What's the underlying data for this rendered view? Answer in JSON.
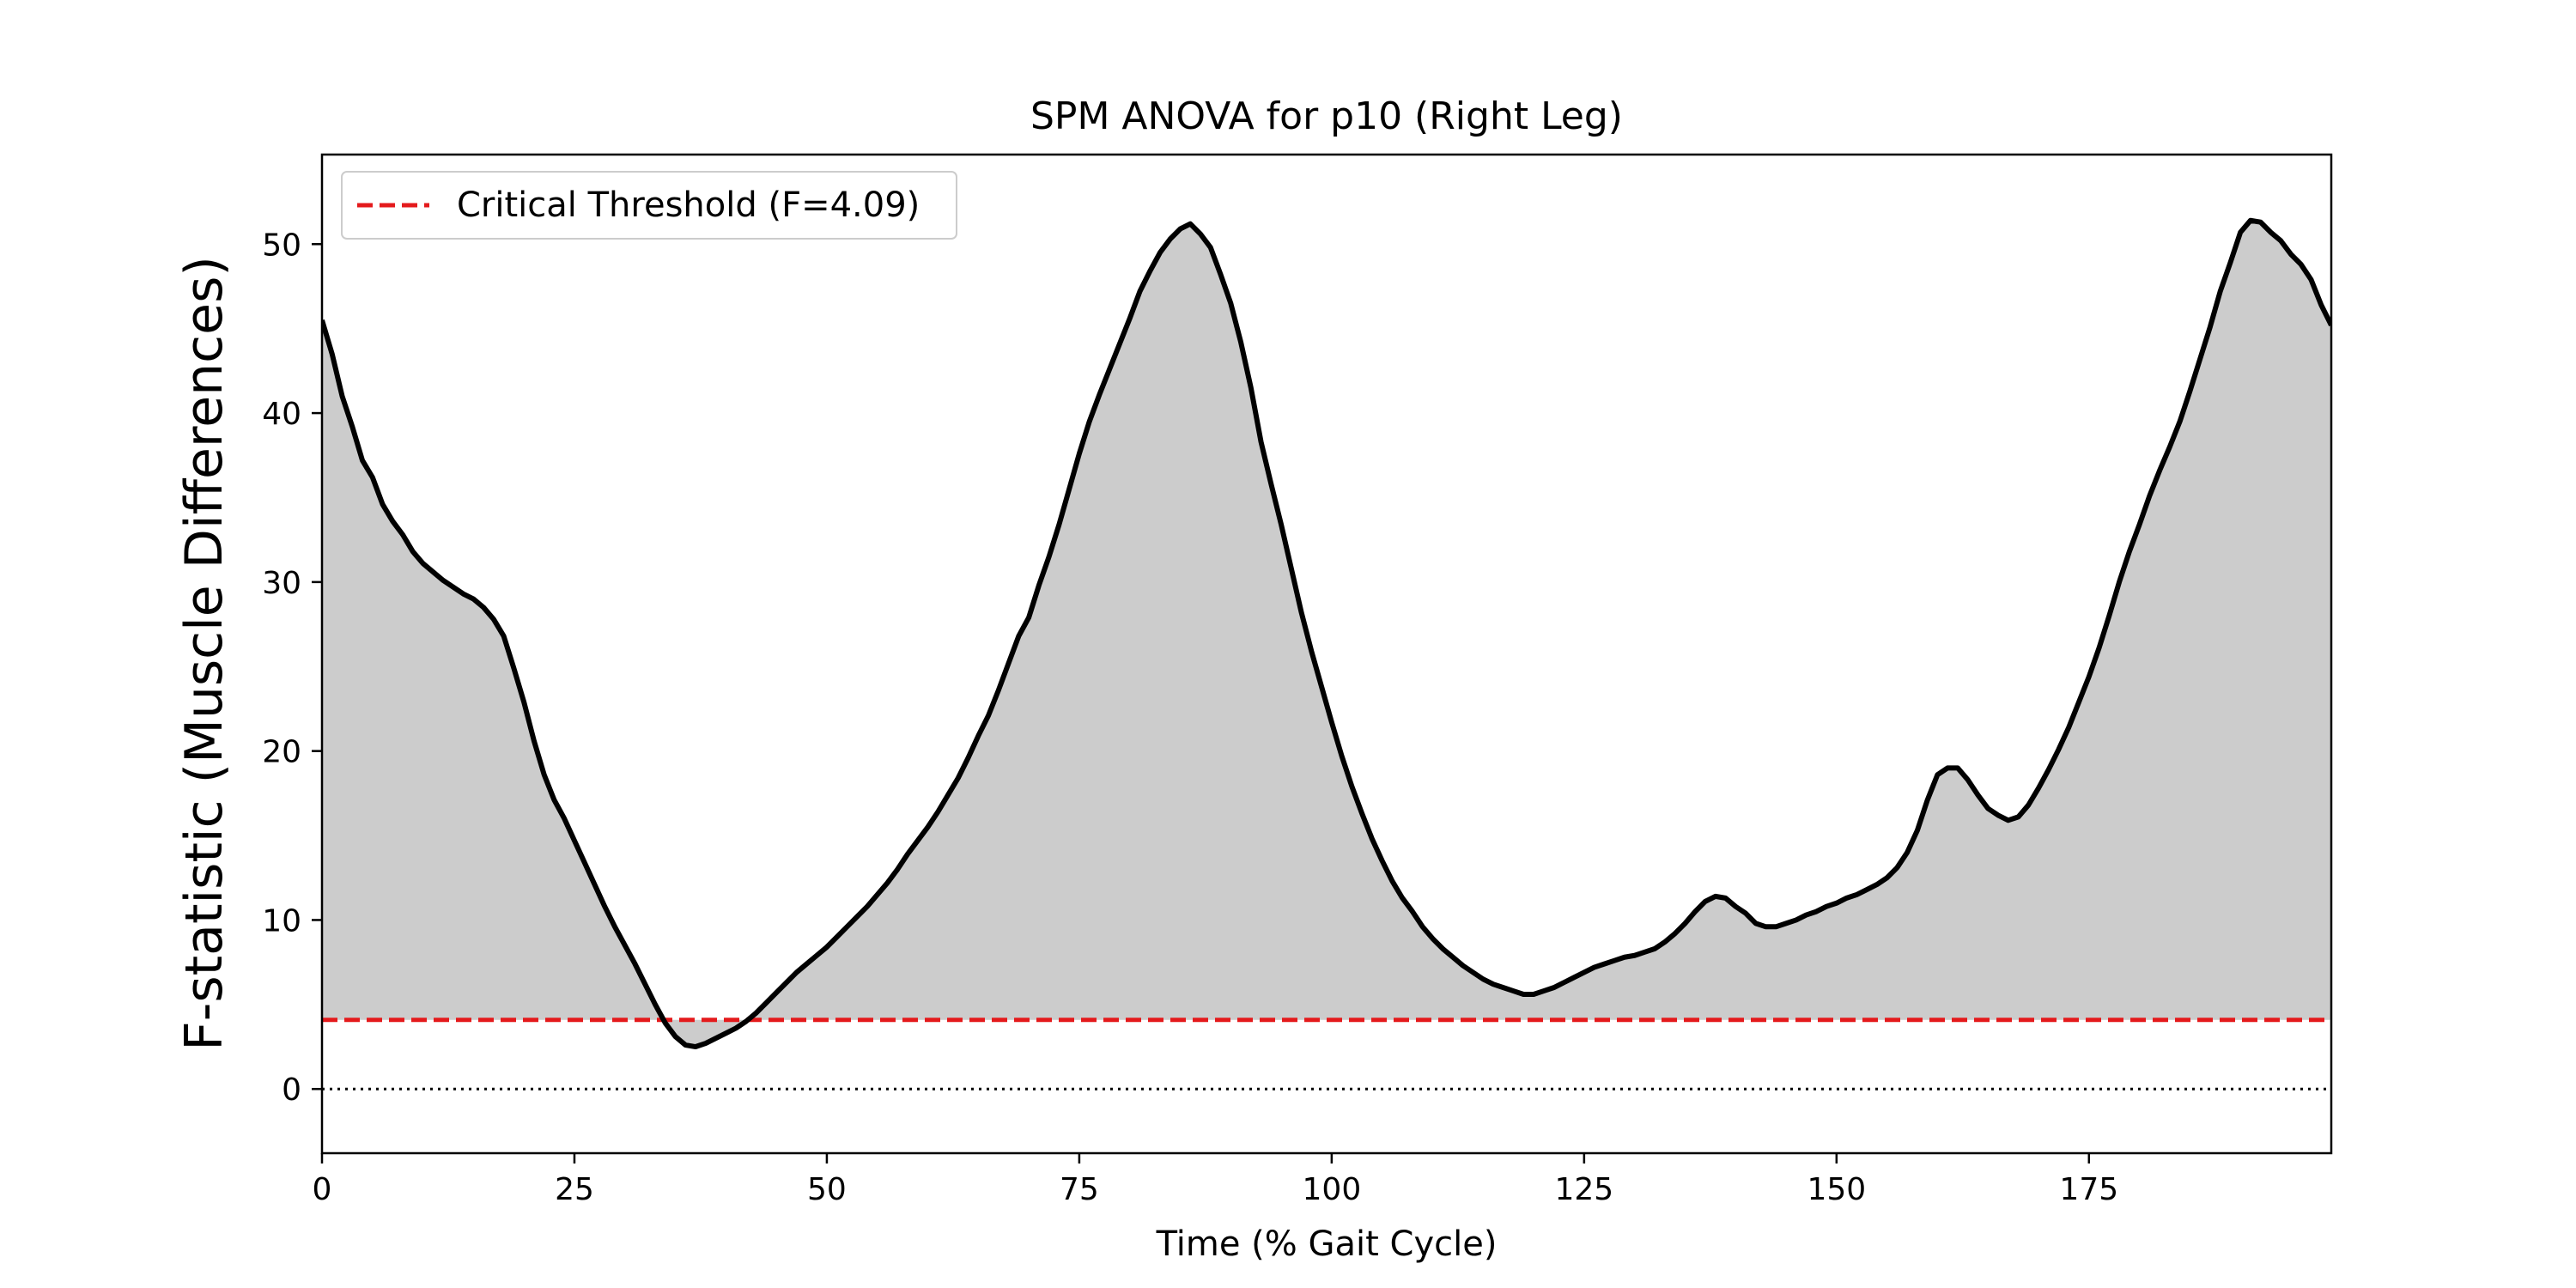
{
  "chart_data": {
    "type": "line",
    "title": "SPM ANOVA for p10 (Right Leg)",
    "xlabel": "Time (% Gait Cycle)",
    "ylabel": "F-statistic (Muscle Differences)",
    "xlim": [
      0,
      199
    ],
    "ylim": [
      -3.8,
      55.3
    ],
    "x_ticks": [
      0,
      25,
      50,
      75,
      100,
      125,
      150,
      175
    ],
    "y_ticks": [
      0,
      10,
      20,
      30,
      40,
      50
    ],
    "grid": false,
    "legend_position": "top-left",
    "threshold": {
      "name": "Critical Threshold (F=4.09)",
      "value": 4.09,
      "color": "#e41a1c",
      "style": "dashed"
    },
    "zero_line": {
      "value": 0,
      "style": "dotted"
    },
    "fill_color": "#cccccc",
    "line_color": "#000000",
    "series": [
      {
        "x": [
          0,
          1,
          2,
          3,
          4,
          5,
          6,
          7,
          8,
          9,
          10,
          11,
          12,
          13,
          14,
          15,
          16,
          17,
          18,
          19,
          20,
          21,
          22,
          23,
          24,
          25,
          26,
          27,
          28,
          29,
          30,
          31,
          32,
          33,
          34,
          35,
          36,
          37,
          38,
          39,
          40,
          41,
          42,
          43,
          44,
          45,
          46,
          47,
          48,
          49,
          50,
          51,
          52,
          53,
          54,
          55,
          56,
          57,
          58,
          59,
          60,
          61,
          62,
          63,
          64,
          65,
          66,
          67,
          68,
          69,
          70,
          71,
          72,
          73,
          74,
          75,
          76,
          77,
          78,
          79,
          80,
          81,
          82,
          83,
          84,
          85,
          86,
          87,
          88,
          89,
          90,
          91,
          92,
          93,
          94,
          95,
          96,
          97,
          98,
          99,
          100,
          101,
          102,
          103,
          104,
          105,
          106,
          107,
          108,
          109,
          110,
          111,
          112,
          113,
          114,
          115,
          116,
          117,
          118,
          119,
          120,
          121,
          122,
          123,
          124,
          125,
          126,
          127,
          128,
          129,
          130,
          131,
          132,
          133,
          134,
          135,
          136,
          137,
          138,
          139,
          140,
          141,
          142,
          143,
          144,
          145,
          146,
          147,
          148,
          149,
          150,
          151,
          152,
          153,
          154,
          155,
          156,
          157,
          158,
          159,
          160,
          161,
          162,
          163,
          164,
          165,
          166,
          167,
          168,
          169,
          170,
          171,
          172,
          173,
          174,
          175,
          176,
          177,
          178,
          179,
          180,
          181,
          182,
          183,
          184,
          185,
          186,
          187,
          188,
          189,
          190,
          191,
          192,
          193,
          194,
          195,
          196,
          197,
          198,
          199
        ],
        "y": [
          45.5,
          43.5,
          41,
          39.2,
          37.2,
          36.2,
          34.6,
          33.6,
          32.8,
          31.8,
          31.1,
          30.6,
          30.1,
          29.7,
          29.3,
          29,
          28.5,
          27.8,
          26.8,
          24.9,
          22.9,
          20.6,
          18.6,
          17.1,
          16,
          14.7,
          13.4,
          12.1,
          10.8,
          9.6,
          8.5,
          7.4,
          6.2,
          5,
          3.9,
          3.1,
          2.6,
          2.5,
          2.7,
          3,
          3.3,
          3.6,
          4,
          4.5,
          5.1,
          5.7,
          6.3,
          6.9,
          7.4,
          7.9,
          8.4,
          9,
          9.6,
          10.2,
          10.8,
          11.5,
          12.2,
          13,
          13.9,
          14.7,
          15.5,
          16.4,
          17.4,
          18.4,
          19.6,
          20.9,
          22.1,
          23.6,
          25.2,
          26.8,
          27.9,
          29.8,
          31.5,
          33.4,
          35.5,
          37.6,
          39.5,
          41.1,
          42.6,
          44.1,
          45.6,
          47.2,
          48.4,
          49.5,
          50.3,
          50.9,
          51.2,
          50.6,
          49.8,
          48.2,
          46.5,
          44.2,
          41.5,
          38.3,
          35.8,
          33.4,
          30.8,
          28.2,
          25.9,
          23.8,
          21.7,
          19.7,
          17.9,
          16.3,
          14.8,
          13.5,
          12.3,
          11.3,
          10.5,
          9.6,
          8.9,
          8.3,
          7.8,
          7.3,
          6.9,
          6.5,
          6.2,
          6,
          5.8,
          5.6,
          5.6,
          5.8,
          6,
          6.3,
          6.6,
          6.9,
          7.2,
          7.4,
          7.6,
          7.8,
          7.9,
          8.1,
          8.3,
          8.7,
          9.2,
          9.8,
          10.5,
          11.1,
          11.4,
          11.3,
          10.8,
          10.4,
          9.8,
          9.6,
          9.6,
          9.8,
          10,
          10.3,
          10.5,
          10.8,
          11,
          11.3,
          11.5,
          11.8,
          12.1,
          12.5,
          13.1,
          14,
          15.3,
          17.1,
          18.6,
          19,
          19,
          18.3,
          17.4,
          16.6,
          16.2,
          15.9,
          16.1,
          16.8,
          17.8,
          18.9,
          20.1,
          21.4,
          22.9,
          24.4,
          26.1,
          28,
          30,
          31.8,
          33.4,
          35.1,
          36.6,
          38,
          39.5,
          41.3,
          43.2,
          45.1,
          47.2,
          48.9,
          50.7,
          51.4,
          51.3,
          50.7,
          50.2,
          49.4,
          48.8,
          47.9,
          46.4,
          45.2
        ]
      }
    ]
  }
}
